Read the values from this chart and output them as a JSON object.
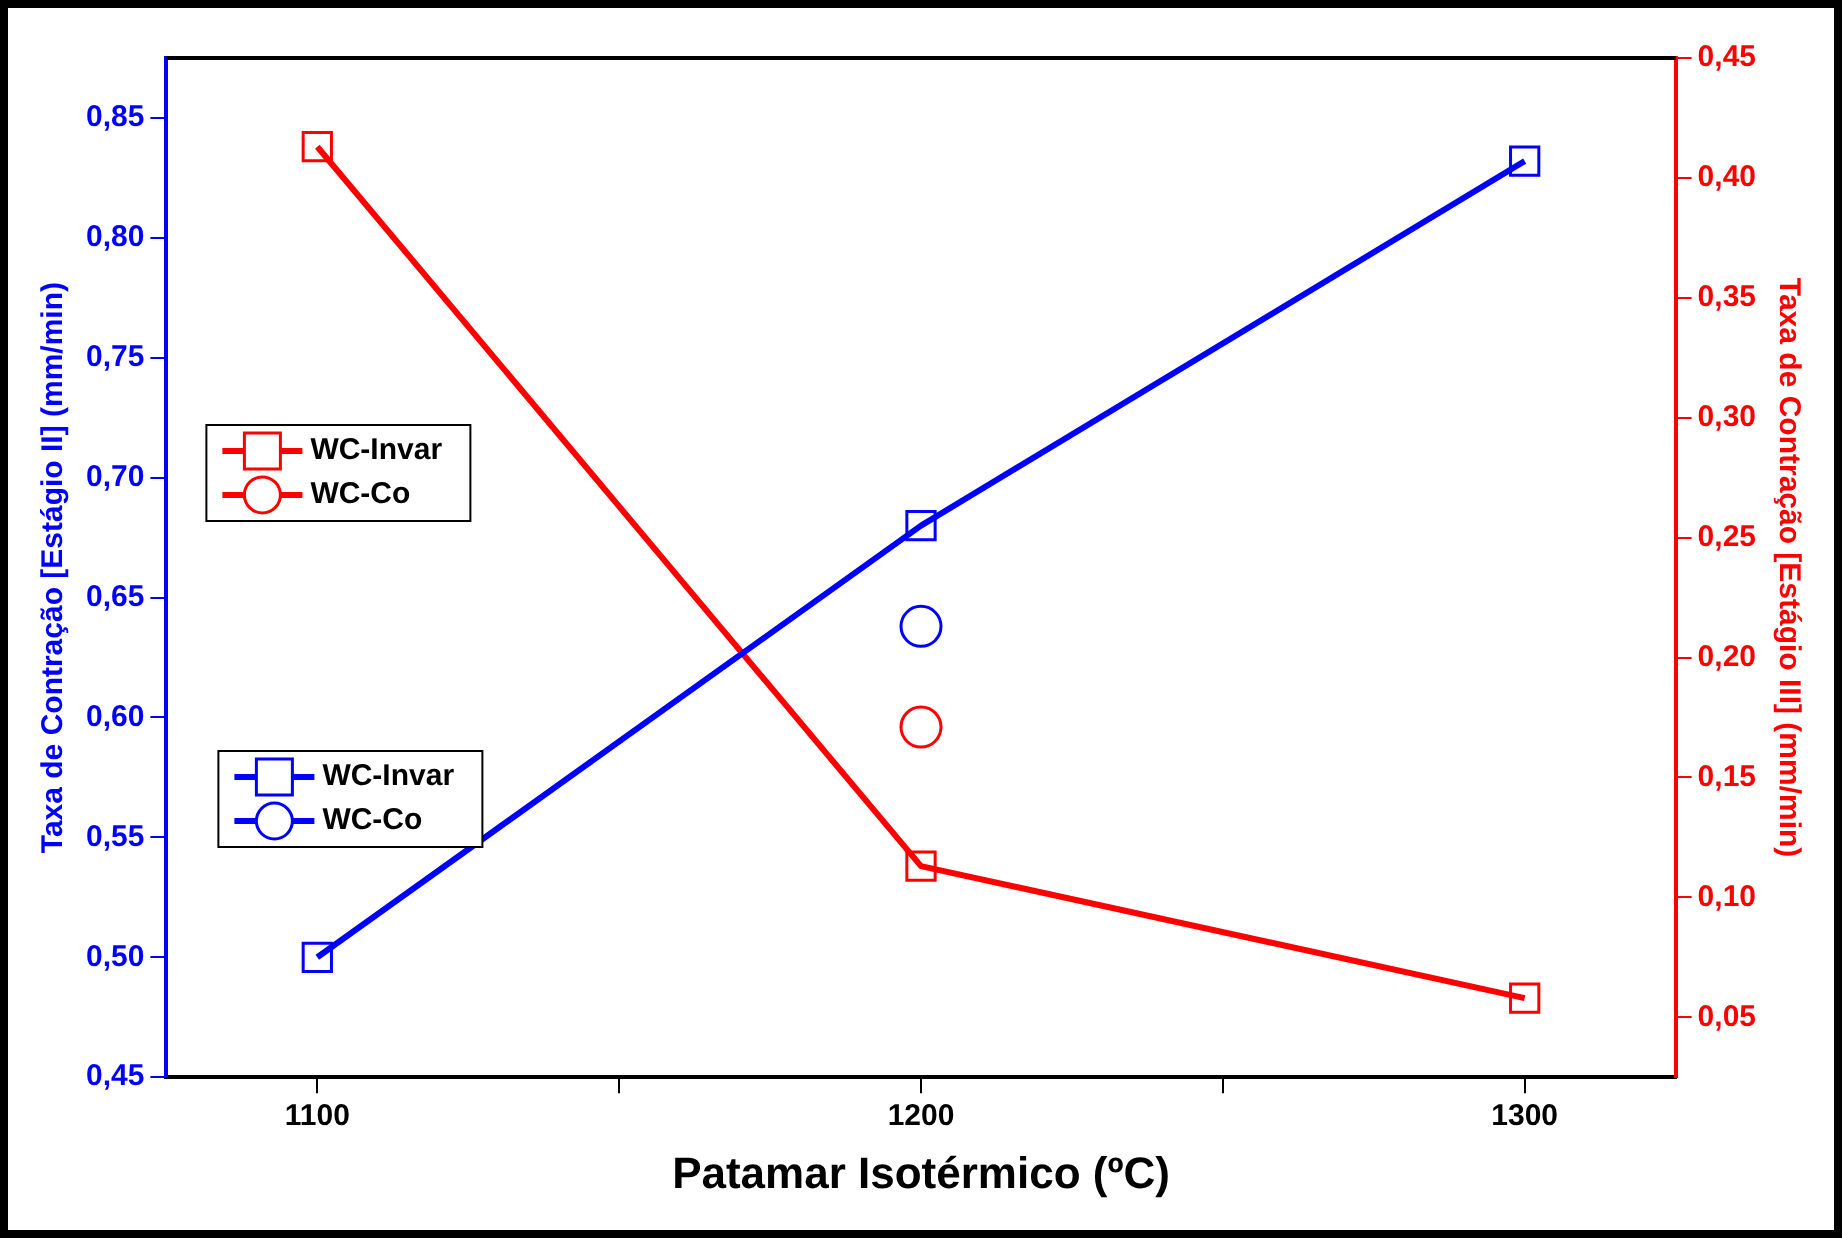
{
  "chart_data": {
    "type": "line",
    "xlabel": "Patamar Isotérmico (ºC)",
    "ylabel": "Taxa de Contração [Estágio II] (mm/min)",
    "y2label": "Taxa de Contração [Estágio III] (mm/min)",
    "x": [
      1100,
      1200,
      1300
    ],
    "series": [
      {
        "name": "WC-Invar",
        "color": "#0000ff",
        "values": [
          0.5,
          0.68,
          0.832
        ],
        "marker": "square",
        "axis": "y"
      },
      {
        "name": "WC-Co",
        "type": "scatter",
        "color": "#0000ff",
        "x": [
          1200
        ],
        "values": [
          0.638
        ],
        "marker": "circle",
        "axis": "y"
      },
      {
        "name": "WC-Invar",
        "color": "#ff0000",
        "values": [
          0.413,
          0.113,
          0.058
        ],
        "marker": "square",
        "axis": "y2"
      },
      {
        "name": "WC-Co",
        "type": "scatter",
        "color": "#ff0000",
        "x": [
          1200
        ],
        "values": [
          0.171
        ],
        "marker": "circle",
        "axis": "y2"
      }
    ],
    "xlim": [
      1075,
      1325
    ],
    "xticks": [
      1100,
      {
        "value": 1150,
        "label": null
      },
      1200,
      {
        "value": 1250,
        "label": null
      },
      1300
    ],
    "ylim": [
      0.45,
      0.875
    ],
    "yticks": [
      {
        "value": 0.45,
        "label": "0,45"
      },
      {
        "value": 0.5,
        "label": "0,50"
      },
      {
        "value": 0.55,
        "label": "0,55"
      },
      {
        "value": 0.6,
        "label": "0,60"
      },
      {
        "value": 0.65,
        "label": "0,65"
      },
      {
        "value": 0.7,
        "label": "0,70"
      },
      {
        "value": 0.75,
        "label": "0,75"
      },
      {
        "value": 0.8,
        "label": "0,80"
      },
      {
        "value": 0.85,
        "label": "0,85"
      }
    ],
    "y2lim": [
      0.025,
      0.45
    ],
    "y2ticks": [
      {
        "value": 0.05,
        "label": "0,05"
      },
      {
        "value": 0.1,
        "label": "0,10"
      },
      {
        "value": 0.15,
        "label": "0,15"
      },
      {
        "value": 0.2,
        "label": "0,20"
      },
      {
        "value": 0.25,
        "label": "0,25"
      },
      {
        "value": 0.3,
        "label": "0,30"
      },
      {
        "value": 0.35,
        "label": "0,35"
      },
      {
        "value": 0.4,
        "label": "0,40"
      },
      {
        "value": 0.45,
        "label": "0,45"
      }
    ],
    "grid": false,
    "legend": "left",
    "line_style": "solid"
  }
}
